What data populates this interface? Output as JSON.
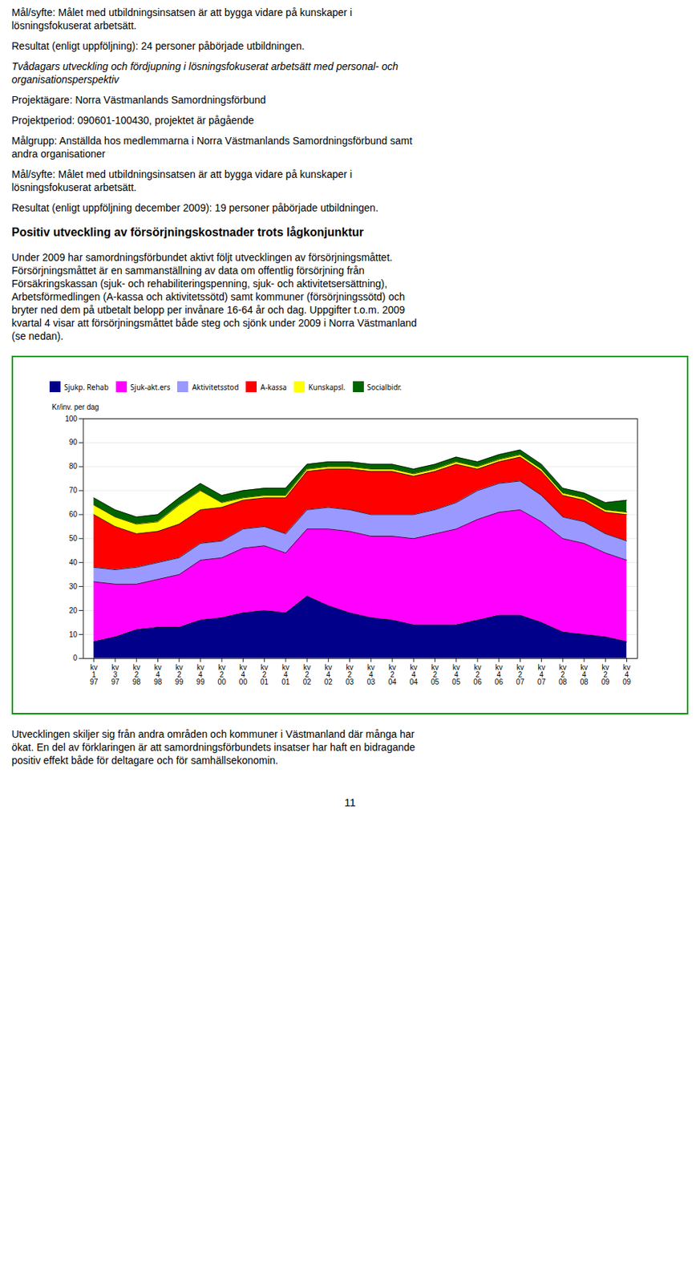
{
  "chart_data": {
    "type": "area",
    "stacked": true,
    "ylabel": "Kr/inv. per dag",
    "categories": [
      "kv\n1\n97",
      "kv\n3\n97",
      "kv\n2\n98",
      "kv\n4\n98",
      "kv\n2\n99",
      "kv\n4\n99",
      "kv\n2\n00",
      "kv\n4\n00",
      "kv\n2\n01",
      "kv\n4\n01",
      "kv\n2\n02",
      "kv\n4\n02",
      "kv\n2\n03",
      "kv\n4\n03",
      "kv\n2\n04",
      "kv\n4\n04",
      "kv\n2\n05",
      "kv\n4\n05",
      "kv\n2\n06",
      "kv\n4\n06",
      "kv\n2\n07",
      "kv\n4\n07",
      "kv\n2\n08",
      "kv\n4\n08",
      "kv\n2\n09",
      "kv\n4\n09"
    ],
    "series": [
      {
        "name": "Sjukp. Rehab",
        "color": "#00008B",
        "values": [
          7,
          9,
          12,
          13,
          13,
          16,
          17,
          19,
          20,
          19,
          26,
          22,
          19,
          17,
          16,
          14,
          14,
          14,
          16,
          18,
          18,
          15,
          11,
          10,
          9,
          7
        ]
      },
      {
        "name": "Sjuk-akt.ers",
        "color": "#FF00FF",
        "values": [
          25,
          22,
          19,
          20,
          22,
          25,
          25,
          27,
          27,
          25,
          28,
          32,
          34,
          34,
          35,
          36,
          38,
          40,
          42,
          43,
          44,
          42,
          39,
          38,
          35,
          34
        ]
      },
      {
        "name": "Aktivitetsstod",
        "color": "#9999FF",
        "values": [
          6,
          6,
          7,
          7,
          7,
          7,
          7,
          8,
          8,
          8,
          8,
          9,
          9,
          9,
          9,
          10,
          10,
          11,
          12,
          12,
          12,
          11,
          9,
          9,
          8,
          8
        ]
      },
      {
        "name": "A-kassa",
        "color": "#FF0000",
        "values": [
          22,
          18,
          14,
          13,
          14,
          14,
          14,
          12,
          12,
          15,
          16,
          16,
          17,
          18,
          18,
          16,
          16,
          16,
          9,
          9,
          10,
          10,
          9,
          9,
          9,
          11
        ]
      },
      {
        "name": "Kunskapsl.",
        "color": "#FFFF00",
        "values": [
          4,
          4,
          4,
          4,
          8,
          8,
          2,
          1,
          1,
          1,
          1,
          1,
          1,
          1,
          1,
          1,
          1,
          1,
          1,
          1,
          1,
          1,
          1,
          1,
          1,
          1
        ]
      },
      {
        "name": "Socialbidr.",
        "color": "#006400",
        "values": [
          3,
          3,
          3,
          3,
          3,
          3,
          3,
          3,
          3,
          3,
          2,
          2,
          2,
          2,
          2,
          2,
          2,
          2,
          2,
          2,
          2,
          2,
          2,
          2,
          3,
          5
        ]
      }
    ],
    "ylim": [
      0,
      100
    ],
    "yticks": [
      0,
      10,
      20,
      30,
      40,
      50,
      60,
      70,
      80,
      90,
      100
    ],
    "grid": true,
    "legend": "top"
  },
  "text_above": [
    {
      "lines": [
        "Mål/syfte: Målet med utbildningsinsatsen är att bygga vidare på kunskaper i",
        "lösningsfokuserat arbetsätt."
      ]
    },
    {
      "lines": [
        "Resultat (enligt uppföljning): 24 personer påbörjade utbildningen."
      ]
    },
    {
      "style": "italic",
      "lines": [
        "Tvådagars utveckling och fördjupning i lösningsfokuserat arbetsätt med personal- och",
        "organisationsperspektiv"
      ]
    },
    {
      "lines": [
        "Projektägare: Norra Västmanlands Samordningsförbund"
      ]
    },
    {
      "lines": [
        "Projektperiod: 090601-100430, projektet är pågående"
      ]
    },
    {
      "lines": [
        "Målgrupp: Anställda hos medlemmarna i Norra Västmanlands Samordningsförbund samt",
        "andra organisationer"
      ]
    },
    {
      "lines": [
        "Mål/syfte: Målet med utbildningsinsatsen är att bygga vidare på kunskaper i",
        "lösningsfokuserat arbetsätt."
      ]
    },
    {
      "lines": [
        "Resultat (enligt uppföljning december 2009): 19 personer påbörjade utbildningen."
      ]
    },
    {
      "style": "heading",
      "lines": [
        "Positiv utveckling av försörjningskostnader trots lågkonjunktur"
      ]
    },
    {
      "lines": [
        "Under 2009 har samordningsförbundet aktivt följt utvecklingen av försörjningsmåttet.",
        "Försörjningsmåttet är en sammanställning av data om offentlig försörjning från",
        "Försäkringskassan (sjuk- och rehabiliteringspenning, sjuk- och aktivitetsersättning),",
        "Arbetsförmedlingen (A-kassa och aktivitetssötd) samt kommuner (försörjningssötd) och",
        "bryter ned dem på utbetalt belopp per invånare 16-64 år och dag. Uppgifter t.o.m. 2009",
        "kvartal 4 visar att försörjningsmåttet både steg och sjönk under 2009 i Norra Västmanland",
        "(se nedan)."
      ]
    }
  ],
  "text_below": [
    {
      "lines": [
        "Utvecklingen skiljer sig från andra områden och kommuner i Västmanland där många har",
        "ökat. En del av förklaringen är att samordningsförbundets insatser har haft en bidragande",
        "positiv effekt både för deltagare och för samhällsekonomin."
      ]
    }
  ],
  "page_number": "11"
}
